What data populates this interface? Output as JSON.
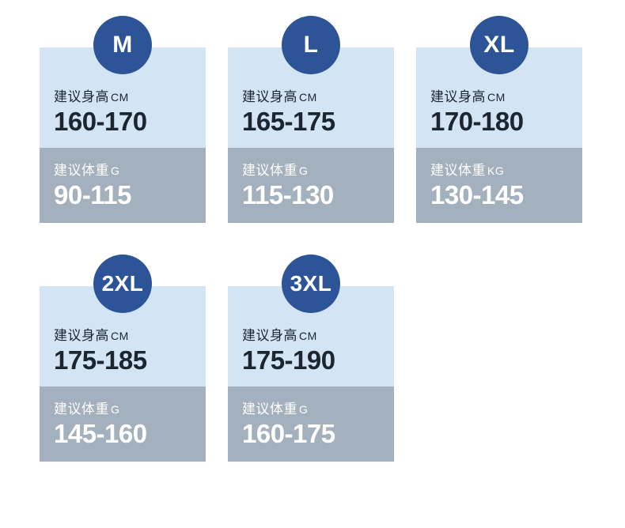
{
  "colors": {
    "badge_bg": "#2c5496",
    "badge_text": "#ffffff",
    "upper_bg": "#d3e4f4",
    "upper_text": "#1c2630",
    "lower_bg": "#a3b0bd",
    "lower_text": "#ffffff",
    "page_bg": "#ffffff"
  },
  "labels": {
    "height_label": "建议身高",
    "height_unit": "CM",
    "weight_label": "建议体重"
  },
  "sizes": [
    {
      "size": "M",
      "height": "160-170",
      "weight": "90-115",
      "weight_unit": "G"
    },
    {
      "size": "L",
      "height": "165-175",
      "weight": "115-130",
      "weight_unit": "G"
    },
    {
      "size": "XL",
      "height": "170-180",
      "weight": "130-145",
      "weight_unit": "KG"
    },
    {
      "size": "2XL",
      "height": "175-185",
      "weight": "145-160",
      "weight_unit": "G"
    },
    {
      "size": "3XL",
      "height": "175-190",
      "weight": "160-175",
      "weight_unit": "G"
    }
  ]
}
